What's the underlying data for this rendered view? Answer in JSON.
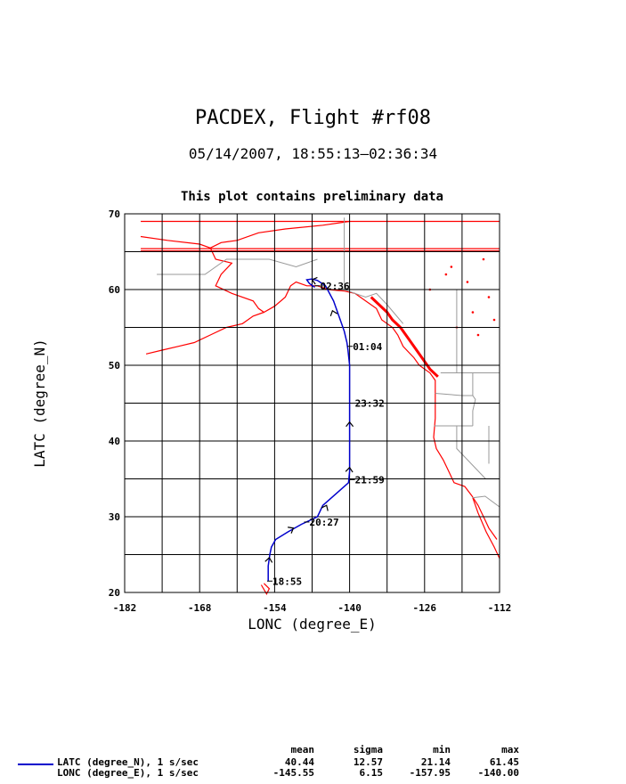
{
  "chart_data": {
    "type": "line",
    "title": "PACDEX, Flight #rf08",
    "subtitle": "05/14/2007, 18:55:13–02:36:34",
    "note": "This plot contains preliminary data",
    "xlabel": "LONC (degree_E)",
    "ylabel": "LATC (degree_N)",
    "xlim": [
      -182,
      -112
    ],
    "ylim": [
      20,
      70
    ],
    "xticks": [
      -182,
      -168,
      -154,
      -140,
      -126,
      -112
    ],
    "yticks": [
      20,
      30,
      40,
      50,
      60,
      70
    ],
    "grid": true,
    "series": [
      {
        "name": "LATC (degree_N), 1 s/sec",
        "color": "#0000cc",
        "x": [
          -155.2,
          -155.2,
          -154.9,
          -154.6,
          -153.8,
          -151.5,
          -149.0,
          -146.0,
          -145.0,
          -140.2,
          -140.0,
          -140.0,
          -140.0,
          -140.0,
          -140.3,
          -140.5,
          -141.0,
          -142.0,
          -143.0,
          -144.5,
          -146.0,
          -147.0,
          -148.0,
          -147.5,
          -146.5
        ],
        "y": [
          21.5,
          23.5,
          25.0,
          26.0,
          27.0,
          28.0,
          29.0,
          30.0,
          31.5,
          34.5,
          36.0,
          40.0,
          43.0,
          50.0,
          52.0,
          53.0,
          54.5,
          56.5,
          58.5,
          60.5,
          61.2,
          61.4,
          61.3,
          60.8,
          60.3
        ]
      }
    ],
    "arrows": [
      {
        "lon": -155.0,
        "lat": 24.6
      },
      {
        "lon": -150.5,
        "lat": 28.5
      },
      {
        "lon": -144.3,
        "lat": 31.5
      },
      {
        "lon": -140.0,
        "lat": 36.5
      },
      {
        "lon": -140.0,
        "lat": 42.5
      },
      {
        "lon": -143.2,
        "lat": 57.2
      },
      {
        "lon": -147.0,
        "lat": 61.3
      }
    ],
    "annotations": [
      {
        "label": "18:55",
        "lon": -155.4,
        "lat": 21.5
      },
      {
        "label": "20:27",
        "lon": -148.5,
        "lat": 29.3
      },
      {
        "label": "21:59",
        "lon": -140.0,
        "lat": 34.9
      },
      {
        "label": "23:32",
        "lon": -140.0,
        "lat": 45.0
      },
      {
        "label": "01:04",
        "lon": -140.4,
        "lat": 52.5
      },
      {
        "label": "02:36",
        "lon": -146.5,
        "lat": 60.5
      }
    ],
    "legend_headers": [
      "mean",
      "sigma",
      "min",
      "max"
    ],
    "stats": [
      {
        "name": "LATC (degree_N), 1 s/sec",
        "mean": "40.44",
        "sigma": "12.57",
        "min": "21.14",
        "max": "61.45"
      },
      {
        "name": "LONC (degree_E), 1 s/sec",
        "mean": "-145.55",
        "sigma": "6.15",
        "min": "-157.95",
        "max": "-140.00"
      }
    ]
  }
}
